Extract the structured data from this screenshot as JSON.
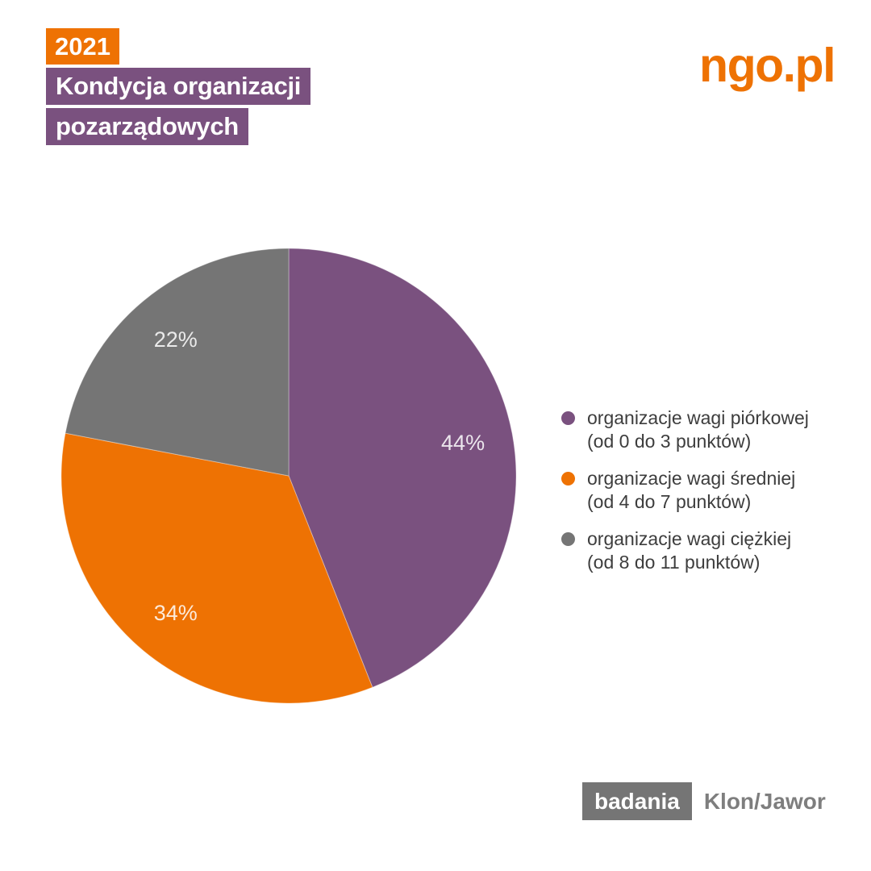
{
  "header": {
    "year_badge": "2021",
    "title_line1": "Kondycja organizacji",
    "title_line2": "pozarządowych"
  },
  "logo": {
    "text": "ngo.pl"
  },
  "chart_data": {
    "type": "pie",
    "title": "Kondycja organizacji pozarządowych 2021",
    "categories": [
      "organizacje wagi piórkowej (od 0 do 3 punktów)",
      "organizacje wagi średniej (od 4 do 7 punktów)",
      "organizacje wagi ciężkiej (od 8 do 11 punktów)"
    ],
    "values": [
      44,
      34,
      22
    ],
    "unit": "%",
    "start_angle_deg": 0,
    "direction": "clockwise",
    "legend_position": "right",
    "slices": [
      {
        "name": "organizacje wagi piórkowej (od 0 do 3 punktów)",
        "value": 44,
        "display": "44%",
        "color": "#7A517F"
      },
      {
        "name": "organizacje wagi średniej (od 4 do 7 punktów)",
        "value": 34,
        "display": "34%",
        "color": "#EE7203"
      },
      {
        "name": "organizacje wagi ciężkiej (od 8 do 11 punktów)",
        "value": 22,
        "display": "22%",
        "color": "#757575"
      }
    ]
  },
  "legend": {
    "items": [
      {
        "line1": "organizacje wagi piórkowej",
        "line2": "(od 0 do 3 punktów)",
        "color": "#7A517F"
      },
      {
        "line1": "organizacje wagi średniej",
        "line2": "(od 4 do 7 punktów)",
        "color": "#EE7203"
      },
      {
        "line1": "organizacje wagi ciężkiej",
        "line2": "(od 8 do 11 punktów)",
        "color": "#757575"
      }
    ]
  },
  "footer": {
    "badge": "badania",
    "source": "Klon/Jawor"
  },
  "colors": {
    "orange": "#EE7203",
    "purple": "#7A517F",
    "gray": "#757575",
    "legend_text": "#3D3D3D",
    "background": "#FFFFFF"
  }
}
